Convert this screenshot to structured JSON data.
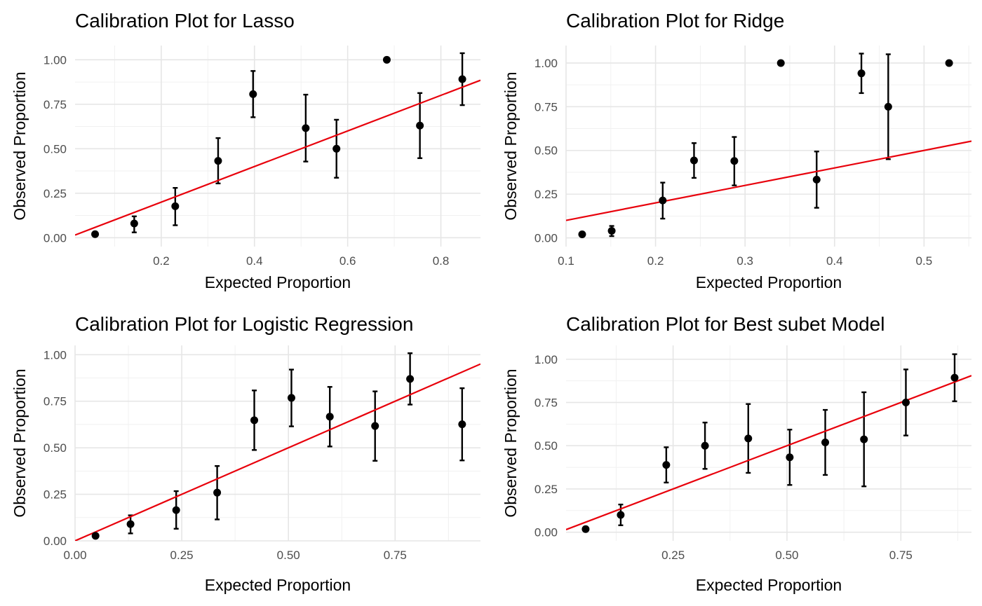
{
  "chart_data": [
    {
      "type": "scatter",
      "title": "Calibration Plot for Lasso",
      "xlabel": "Expected Proportion",
      "ylabel": "Observed Proportion",
      "xlim": [
        0.015,
        0.885
      ],
      "ylim": [
        -0.05,
        1.08
      ],
      "xticks": [
        {
          "v": 0.2,
          "label": "0.2"
        },
        {
          "v": 0.4,
          "label": "0.4"
        },
        {
          "v": 0.6,
          "label": "0.6"
        },
        {
          "v": 0.8,
          "label": "0.8"
        }
      ],
      "yticks": [
        {
          "v": 0.0,
          "label": "0.00"
        },
        {
          "v": 0.25,
          "label": "0.25"
        },
        {
          "v": 0.5,
          "label": "0.50"
        },
        {
          "v": 0.75,
          "label": "0.75"
        },
        {
          "v": 1.0,
          "label": "1.00"
        }
      ],
      "points": [
        {
          "x": 0.058,
          "y": 0.02,
          "lo": null,
          "hi": null
        },
        {
          "x": 0.142,
          "y": 0.08,
          "lo": 0.03,
          "hi": 0.12
        },
        {
          "x": 0.23,
          "y": 0.177,
          "lo": 0.07,
          "hi": 0.28
        },
        {
          "x": 0.322,
          "y": 0.432,
          "lo": 0.305,
          "hi": 0.56
        },
        {
          "x": 0.397,
          "y": 0.807,
          "lo": 0.677,
          "hi": 0.937
        },
        {
          "x": 0.51,
          "y": 0.616,
          "lo": 0.428,
          "hi": 0.804
        },
        {
          "x": 0.576,
          "y": 0.5,
          "lo": 0.337,
          "hi": 0.663
        },
        {
          "x": 0.684,
          "y": 1.0,
          "lo": null,
          "hi": null
        },
        {
          "x": 0.755,
          "y": 0.63,
          "lo": 0.447,
          "hi": 0.813
        },
        {
          "x": 0.846,
          "y": 0.891,
          "lo": 0.745,
          "hi": 1.037
        }
      ],
      "reference_line": {
        "intercept": 0.0,
        "slope": 1.0,
        "color": "#e8000b"
      },
      "grid": true
    },
    {
      "type": "scatter",
      "title": "Calibration Plot for Ridge",
      "xlabel": "Expected Proportion",
      "ylabel": "Observed Proportion",
      "xlim": [
        0.1,
        0.553
      ],
      "ylim": [
        -0.05,
        1.1
      ],
      "xticks": [
        {
          "v": 0.1,
          "label": "0.1"
        },
        {
          "v": 0.2,
          "label": "0.2"
        },
        {
          "v": 0.3,
          "label": "0.3"
        },
        {
          "v": 0.4,
          "label": "0.4"
        },
        {
          "v": 0.5,
          "label": "0.5"
        }
      ],
      "yticks": [
        {
          "v": 0.0,
          "label": "0.00"
        },
        {
          "v": 0.25,
          "label": "0.25"
        },
        {
          "v": 0.5,
          "label": "0.50"
        },
        {
          "v": 0.75,
          "label": "0.75"
        },
        {
          "v": 1.0,
          "label": "1.00"
        }
      ],
      "points": [
        {
          "x": 0.118,
          "y": 0.02,
          "lo": 0.01,
          "hi": 0.03
        },
        {
          "x": 0.151,
          "y": 0.04,
          "lo": 0.01,
          "hi": 0.068
        },
        {
          "x": 0.208,
          "y": 0.214,
          "lo": 0.11,
          "hi": 0.316
        },
        {
          "x": 0.243,
          "y": 0.443,
          "lo": 0.343,
          "hi": 0.542
        },
        {
          "x": 0.288,
          "y": 0.44,
          "lo": 0.3,
          "hi": 0.577
        },
        {
          "x": 0.34,
          "y": 1.0,
          "lo": null,
          "hi": null
        },
        {
          "x": 0.38,
          "y": 0.333,
          "lo": 0.172,
          "hi": 0.494
        },
        {
          "x": 0.43,
          "y": 0.941,
          "lo": 0.828,
          "hi": 1.054
        },
        {
          "x": 0.46,
          "y": 0.75,
          "lo": 0.45,
          "hi": 1.05
        },
        {
          "x": 0.528,
          "y": 1.0,
          "lo": null,
          "hi": null
        }
      ],
      "reference_line": {
        "intercept": 0.0,
        "slope": 1.0,
        "color": "#e8000b"
      },
      "grid": true
    },
    {
      "type": "scatter",
      "title": "Calibration Plot for Logistic Regression",
      "xlabel": "Expected Proportion",
      "ylabel": "Observed Proportion",
      "xlim": [
        0.0,
        0.95
      ],
      "ylim": [
        0.0,
        1.05
      ],
      "xticks": [
        {
          "v": 0.0,
          "label": "0.00"
        },
        {
          "v": 0.25,
          "label": "0.25"
        },
        {
          "v": 0.5,
          "label": "0.50"
        },
        {
          "v": 0.75,
          "label": "0.75"
        }
      ],
      "yticks": [
        {
          "v": 0.0,
          "label": "0.00"
        },
        {
          "v": 0.25,
          "label": "0.25"
        },
        {
          "v": 0.5,
          "label": "0.50"
        },
        {
          "v": 0.75,
          "label": "0.75"
        },
        {
          "v": 1.0,
          "label": "1.00"
        }
      ],
      "points": [
        {
          "x": 0.048,
          "y": 0.027,
          "lo": null,
          "hi": null
        },
        {
          "x": 0.13,
          "y": 0.09,
          "lo": 0.04,
          "hi": 0.137
        },
        {
          "x": 0.237,
          "y": 0.165,
          "lo": 0.065,
          "hi": 0.267
        },
        {
          "x": 0.333,
          "y": 0.259,
          "lo": 0.115,
          "hi": 0.402
        },
        {
          "x": 0.42,
          "y": 0.648,
          "lo": 0.488,
          "hi": 0.808
        },
        {
          "x": 0.507,
          "y": 0.768,
          "lo": 0.615,
          "hi": 0.92
        },
        {
          "x": 0.597,
          "y": 0.667,
          "lo": 0.507,
          "hi": 0.827
        },
        {
          "x": 0.703,
          "y": 0.617,
          "lo": 0.43,
          "hi": 0.803
        },
        {
          "x": 0.785,
          "y": 0.87,
          "lo": 0.732,
          "hi": 1.008
        },
        {
          "x": 0.907,
          "y": 0.626,
          "lo": 0.432,
          "hi": 0.82
        }
      ],
      "reference_line": {
        "intercept": 0.0,
        "slope": 1.0,
        "color": "#e8000b"
      },
      "grid": true
    },
    {
      "type": "scatter",
      "title": "Calibration Plot for Best subet Model",
      "xlabel": "Expected Proportion",
      "ylabel": "Observed Proportion",
      "xlim": [
        0.015,
        0.905
      ],
      "ylim": [
        -0.05,
        1.08
      ],
      "xticks": [
        {
          "v": 0.25,
          "label": "0.25"
        },
        {
          "v": 0.5,
          "label": "0.50"
        },
        {
          "v": 0.75,
          "label": "0.75"
        }
      ],
      "yticks": [
        {
          "v": 0.0,
          "label": "0.00"
        },
        {
          "v": 0.25,
          "label": "0.25"
        },
        {
          "v": 0.5,
          "label": "0.50"
        },
        {
          "v": 0.75,
          "label": "0.75"
        },
        {
          "v": 1.0,
          "label": "1.00"
        }
      ],
      "points": [
        {
          "x": 0.058,
          "y": 0.018,
          "lo": null,
          "hi": null
        },
        {
          "x": 0.135,
          "y": 0.1,
          "lo": 0.04,
          "hi": 0.16
        },
        {
          "x": 0.235,
          "y": 0.389,
          "lo": 0.287,
          "hi": 0.491
        },
        {
          "x": 0.32,
          "y": 0.5,
          "lo": 0.366,
          "hi": 0.634
        },
        {
          "x": 0.415,
          "y": 0.542,
          "lo": 0.343,
          "hi": 0.741
        },
        {
          "x": 0.506,
          "y": 0.433,
          "lo": 0.273,
          "hi": 0.593
        },
        {
          "x": 0.584,
          "y": 0.519,
          "lo": 0.331,
          "hi": 0.707
        },
        {
          "x": 0.669,
          "y": 0.537,
          "lo": 0.265,
          "hi": 0.809
        },
        {
          "x": 0.761,
          "y": 0.75,
          "lo": 0.559,
          "hi": 0.941
        },
        {
          "x": 0.868,
          "y": 0.893,
          "lo": 0.757,
          "hi": 1.029
        }
      ],
      "reference_line": {
        "intercept": 0.0,
        "slope": 1.0,
        "color": "#e8000b"
      },
      "grid": true
    }
  ]
}
